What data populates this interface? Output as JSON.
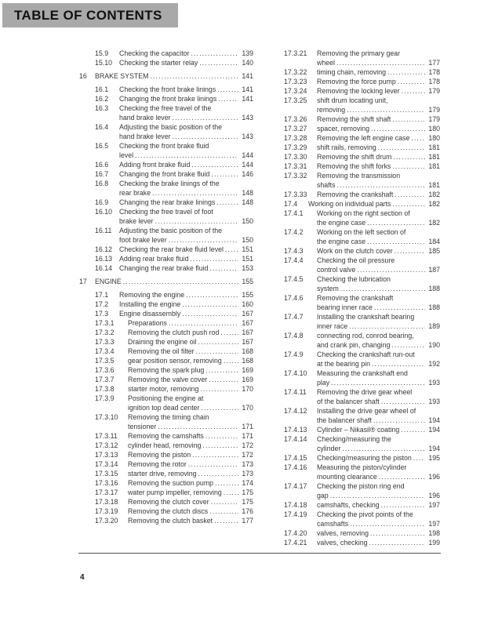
{
  "header": {
    "title": "TABLE OF CONTENTS"
  },
  "footer": {
    "page_number": "4"
  },
  "colors": {
    "header_bg": "#a9a9a9",
    "text": "#383838"
  },
  "toc": {
    "columns": [
      {
        "entries": [
          {
            "num": "15.9",
            "level": 1,
            "lines": [
              "Checking the capacitor"
            ],
            "page": "139"
          },
          {
            "num": "15.10",
            "level": 1,
            "lines": [
              "Checking the starter relay"
            ],
            "page": "140"
          },
          {
            "num": "16",
            "level": 0,
            "lines": [
              "BRAKE SYSTEM"
            ],
            "page": "141"
          },
          {
            "num": "16.1",
            "level": 1,
            "lines": [
              "Checking the front brake linings"
            ],
            "page": "141"
          },
          {
            "num": "16.2",
            "level": 1,
            "lines": [
              "Changing the front brake linings"
            ],
            "page": "141"
          },
          {
            "num": "16.3",
            "level": 1,
            "lines": [
              "Checking the free travel of the",
              "hand brake lever"
            ],
            "page": "143"
          },
          {
            "num": "16.4",
            "level": 1,
            "lines": [
              "Adjusting the basic position of the",
              "hand brake lever"
            ],
            "page": "143"
          },
          {
            "num": "16.5",
            "level": 1,
            "lines": [
              "Checking the front brake fluid",
              "level"
            ],
            "page": "144"
          },
          {
            "num": "16.6",
            "level": 1,
            "lines": [
              "Adding front brake fluid"
            ],
            "page": "144"
          },
          {
            "num": "16.7",
            "level": 1,
            "lines": [
              "Changing the front brake fluid"
            ],
            "page": "146"
          },
          {
            "num": "16.8",
            "level": 1,
            "lines": [
              "Checking the brake linings of the",
              "rear brake"
            ],
            "page": "148"
          },
          {
            "num": "16.9",
            "level": 1,
            "lines": [
              "Changing the rear brake linings"
            ],
            "page": "148"
          },
          {
            "num": "16.10",
            "level": 1,
            "lines": [
              "Checking the free travel of foot",
              "brake lever"
            ],
            "page": "150"
          },
          {
            "num": "16.11",
            "level": 1,
            "lines": [
              "Adjusting the basic position of the",
              "foot brake lever"
            ],
            "page": "150"
          },
          {
            "num": "16.12",
            "level": 1,
            "lines": [
              "Checking the rear brake fluid level"
            ],
            "page": "151"
          },
          {
            "num": "16.13",
            "level": 1,
            "lines": [
              "Adding rear brake fluid"
            ],
            "page": "151"
          },
          {
            "num": "16.14",
            "level": 1,
            "lines": [
              "Changing the rear brake fluid"
            ],
            "page": "153"
          },
          {
            "num": "17",
            "level": 0,
            "lines": [
              "ENGINE"
            ],
            "page": "155"
          },
          {
            "num": "17.1",
            "level": 1,
            "lines": [
              "Removing the engine"
            ],
            "page": "155"
          },
          {
            "num": "17.2",
            "level": 1,
            "lines": [
              "Installing the engine"
            ],
            "page": "160"
          },
          {
            "num": "17.3",
            "level": 1,
            "lines": [
              "Engine disassembly"
            ],
            "page": "167"
          },
          {
            "num": "17.3.1",
            "level": 2,
            "lines": [
              "Preparations"
            ],
            "page": "167"
          },
          {
            "num": "17.3.2",
            "level": 2,
            "lines": [
              "Removing the clutch push rod"
            ],
            "page": "167"
          },
          {
            "num": "17.3.3",
            "level": 2,
            "lines": [
              "Draining the engine oil"
            ],
            "page": "167"
          },
          {
            "num": "17.3.4",
            "level": 2,
            "lines": [
              "Removing the oil filter"
            ],
            "page": "168"
          },
          {
            "num": "17.3.5",
            "level": 2,
            "lines": [
              "gear position sensor, removing"
            ],
            "page": "168"
          },
          {
            "num": "17.3.6",
            "level": 2,
            "lines": [
              "Removing the spark plug"
            ],
            "page": "169"
          },
          {
            "num": "17.3.7",
            "level": 2,
            "lines": [
              "Removing the valve cover"
            ],
            "page": "169"
          },
          {
            "num": "17.3.8",
            "level": 2,
            "lines": [
              "starter motor, removing"
            ],
            "page": "170"
          },
          {
            "num": "17.3.9",
            "level": 2,
            "lines": [
              "Positioning the engine at",
              "ignition top dead center"
            ],
            "page": "170"
          },
          {
            "num": "17.3.10",
            "level": 2,
            "lines": [
              "Removing the timing chain",
              "tensioner"
            ],
            "page": "171"
          },
          {
            "num": "17.3.11",
            "level": 2,
            "lines": [
              "Removing the camshafts"
            ],
            "page": "171"
          },
          {
            "num": "17.3.12",
            "level": 2,
            "lines": [
              "cylinder head, removing"
            ],
            "page": "172"
          },
          {
            "num": "17.3.13",
            "level": 2,
            "lines": [
              "Removing the piston"
            ],
            "page": "172"
          },
          {
            "num": "17.3.14",
            "level": 2,
            "lines": [
              "Removing the rotor"
            ],
            "page": "173"
          },
          {
            "num": "17.3.15",
            "level": 2,
            "lines": [
              "starter drive, removing"
            ],
            "page": "173"
          },
          {
            "num": "17.3.16",
            "level": 2,
            "lines": [
              "Removing the suction pump"
            ],
            "page": "174"
          },
          {
            "num": "17.3.17",
            "level": 2,
            "lines": [
              "water pump impeller, removing"
            ],
            "page": "175"
          },
          {
            "num": "17.3.18",
            "level": 2,
            "lines": [
              "Removing the clutch cover"
            ],
            "page": "175"
          },
          {
            "num": "17.3.19",
            "level": 2,
            "lines": [
              "Removing the clutch discs"
            ],
            "page": "176"
          },
          {
            "num": "17.3.20",
            "level": 2,
            "lines": [
              "Removing the clutch basket"
            ],
            "page": "177"
          }
        ]
      },
      {
        "entries": [
          {
            "num": "17.3.21",
            "level": 2,
            "lines": [
              "Removing the primary gear",
              "wheel"
            ],
            "page": "177"
          },
          {
            "num": "17.3.22",
            "level": 2,
            "lines": [
              "timing chain, removing"
            ],
            "page": "178"
          },
          {
            "num": "17.3.23",
            "level": 2,
            "lines": [
              "Removing the force pump"
            ],
            "page": "178"
          },
          {
            "num": "17.3.24",
            "level": 2,
            "lines": [
              "Removing the locking lever"
            ],
            "page": "179"
          },
          {
            "num": "17.3.25",
            "level": 2,
            "lines": [
              "shift drum locating unit,",
              "removing"
            ],
            "page": "179"
          },
          {
            "num": "17.3.26",
            "level": 2,
            "lines": [
              "Removing the shift shaft"
            ],
            "page": "179"
          },
          {
            "num": "17.3.27",
            "level": 2,
            "lines": [
              "spacer, removing"
            ],
            "page": "180"
          },
          {
            "num": "17.3.28",
            "level": 2,
            "lines": [
              "Removing the left engine case"
            ],
            "page": "180"
          },
          {
            "num": "17.3.29",
            "level": 2,
            "lines": [
              "shift rails, removing"
            ],
            "page": "181"
          },
          {
            "num": "17.3.30",
            "level": 2,
            "lines": [
              "Removing the shift drum"
            ],
            "page": "181"
          },
          {
            "num": "17.3.31",
            "level": 2,
            "lines": [
              "Removing the shift forks"
            ],
            "page": "181"
          },
          {
            "num": "17.3.32",
            "level": 2,
            "lines": [
              "Removing the transmission",
              "shafts"
            ],
            "page": "181"
          },
          {
            "num": "17.3.33",
            "level": 2,
            "lines": [
              "Removing the crankshaft"
            ],
            "page": "182"
          },
          {
            "num": "17.4",
            "level": 1,
            "lines": [
              "Working on individual parts"
            ],
            "page": "182"
          },
          {
            "num": "17.4.1",
            "level": 2,
            "lines": [
              "Working on the right section of",
              "the engine case"
            ],
            "page": "182"
          },
          {
            "num": "17.4.2",
            "level": 2,
            "lines": [
              "Working on the left section of",
              "the engine case"
            ],
            "page": "184"
          },
          {
            "num": "17.4.3",
            "level": 2,
            "lines": [
              "Work on the clutch cover"
            ],
            "page": "185"
          },
          {
            "num": "17.4.4",
            "level": 2,
            "lines": [
              "Checking the oil pressure",
              "control valve"
            ],
            "page": "187"
          },
          {
            "num": "17.4.5",
            "level": 2,
            "lines": [
              "Checking the lubrication",
              "system"
            ],
            "page": "188"
          },
          {
            "num": "17.4.6",
            "level": 2,
            "lines": [
              "Removing the crankshaft",
              "bearing inner race"
            ],
            "page": "188"
          },
          {
            "num": "17.4.7",
            "level": 2,
            "lines": [
              "Installing the crankshaft bearing",
              "inner race"
            ],
            "page": "189"
          },
          {
            "num": "17.4.8",
            "level": 2,
            "lines": [
              "connecting rod, conrod bearing,",
              "and crank pin, changing"
            ],
            "page": "190"
          },
          {
            "num": "17.4.9",
            "level": 2,
            "lines": [
              "Checking the crankshaft run-out",
              "at the bearing pin"
            ],
            "page": "192"
          },
          {
            "num": "17.4.10",
            "level": 2,
            "lines": [
              "Measuring the crankshaft end",
              "play"
            ],
            "page": "193"
          },
          {
            "num": "17.4.11",
            "level": 2,
            "lines": [
              "Removing the drive gear wheel",
              "of the balancer shaft"
            ],
            "page": "193"
          },
          {
            "num": "17.4.12",
            "level": 2,
            "lines": [
              "Installing the drive gear wheel of",
              "the balancer shaft"
            ],
            "page": "194"
          },
          {
            "num": "17.4.13",
            "level": 2,
            "lines": [
              "Cylinder – Nikasil® coating"
            ],
            "page": "194"
          },
          {
            "num": "17.4.14",
            "level": 2,
            "lines": [
              "Checking/measuring the",
              "cylinder"
            ],
            "page": "194"
          },
          {
            "num": "17.4.15",
            "level": 2,
            "lines": [
              "Checking/measuring the piston"
            ],
            "page": "195"
          },
          {
            "num": "17.4.16",
            "level": 2,
            "lines": [
              "Measuring the piston/cylinder",
              "mounting clearance"
            ],
            "page": "196"
          },
          {
            "num": "17.4.17",
            "level": 2,
            "lines": [
              "Checking the piston ring end",
              "gap"
            ],
            "page": "196"
          },
          {
            "num": "17.4.18",
            "level": 2,
            "lines": [
              "camshafts, checking"
            ],
            "page": "197"
          },
          {
            "num": "17.4.19",
            "level": 2,
            "lines": [
              "Checking the pivot points of the",
              "camshafts"
            ],
            "page": "197"
          },
          {
            "num": "17.4.20",
            "level": 2,
            "lines": [
              "valves, removing"
            ],
            "page": "198"
          },
          {
            "num": "17.4.21",
            "level": 2,
            "lines": [
              "valves, checking"
            ],
            "page": "199"
          }
        ]
      }
    ]
  }
}
